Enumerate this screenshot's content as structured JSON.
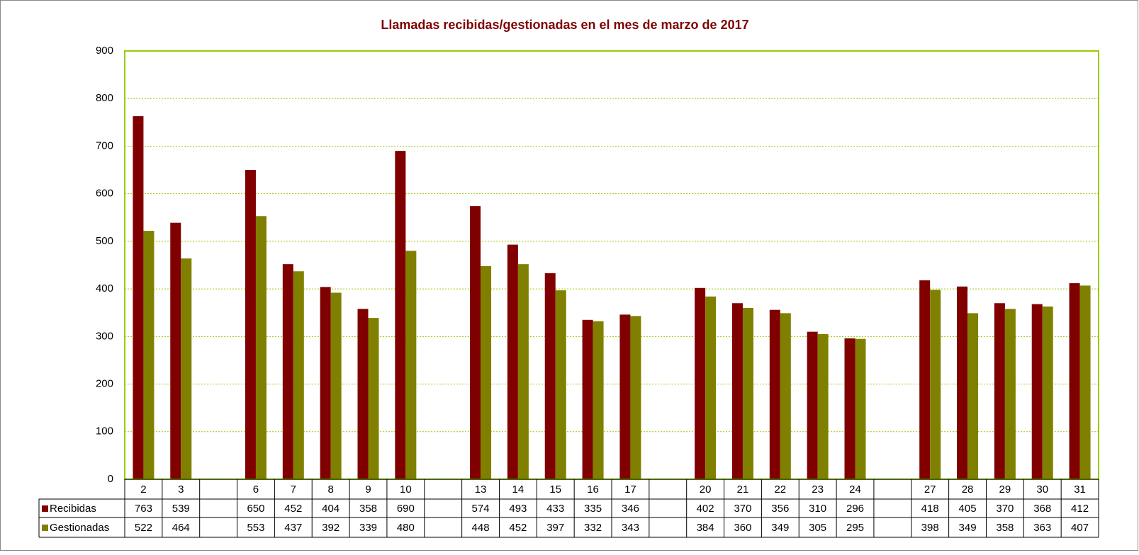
{
  "chart_data": {
    "type": "bar",
    "title": "Llamadas recibidas/gestionadas en el mes de marzo de 2017",
    "categories": [
      "2",
      "3",
      null,
      "6",
      "7",
      "8",
      "9",
      "10",
      null,
      "13",
      "14",
      "15",
      "16",
      "17",
      null,
      "20",
      "21",
      "22",
      "23",
      "24",
      null,
      "27",
      "28",
      "29",
      "30",
      "31"
    ],
    "series": [
      {
        "name": "Recibidas",
        "color": "#800000",
        "values": [
          763,
          539,
          null,
          650,
          452,
          404,
          358,
          690,
          null,
          574,
          493,
          433,
          335,
          346,
          null,
          402,
          370,
          356,
          310,
          296,
          null,
          418,
          405,
          370,
          368,
          412
        ]
      },
      {
        "name": "Gestionadas",
        "color": "#808000",
        "values": [
          522,
          464,
          null,
          553,
          437,
          392,
          339,
          480,
          null,
          448,
          452,
          397,
          332,
          343,
          null,
          384,
          360,
          349,
          305,
          295,
          null,
          398,
          349,
          358,
          363,
          407
        ]
      }
    ],
    "ylim": [
      0,
      900
    ],
    "yticks": [
      0,
      100,
      200,
      300,
      400,
      500,
      600,
      700,
      800,
      900
    ],
    "grid": true,
    "data_table": true
  }
}
